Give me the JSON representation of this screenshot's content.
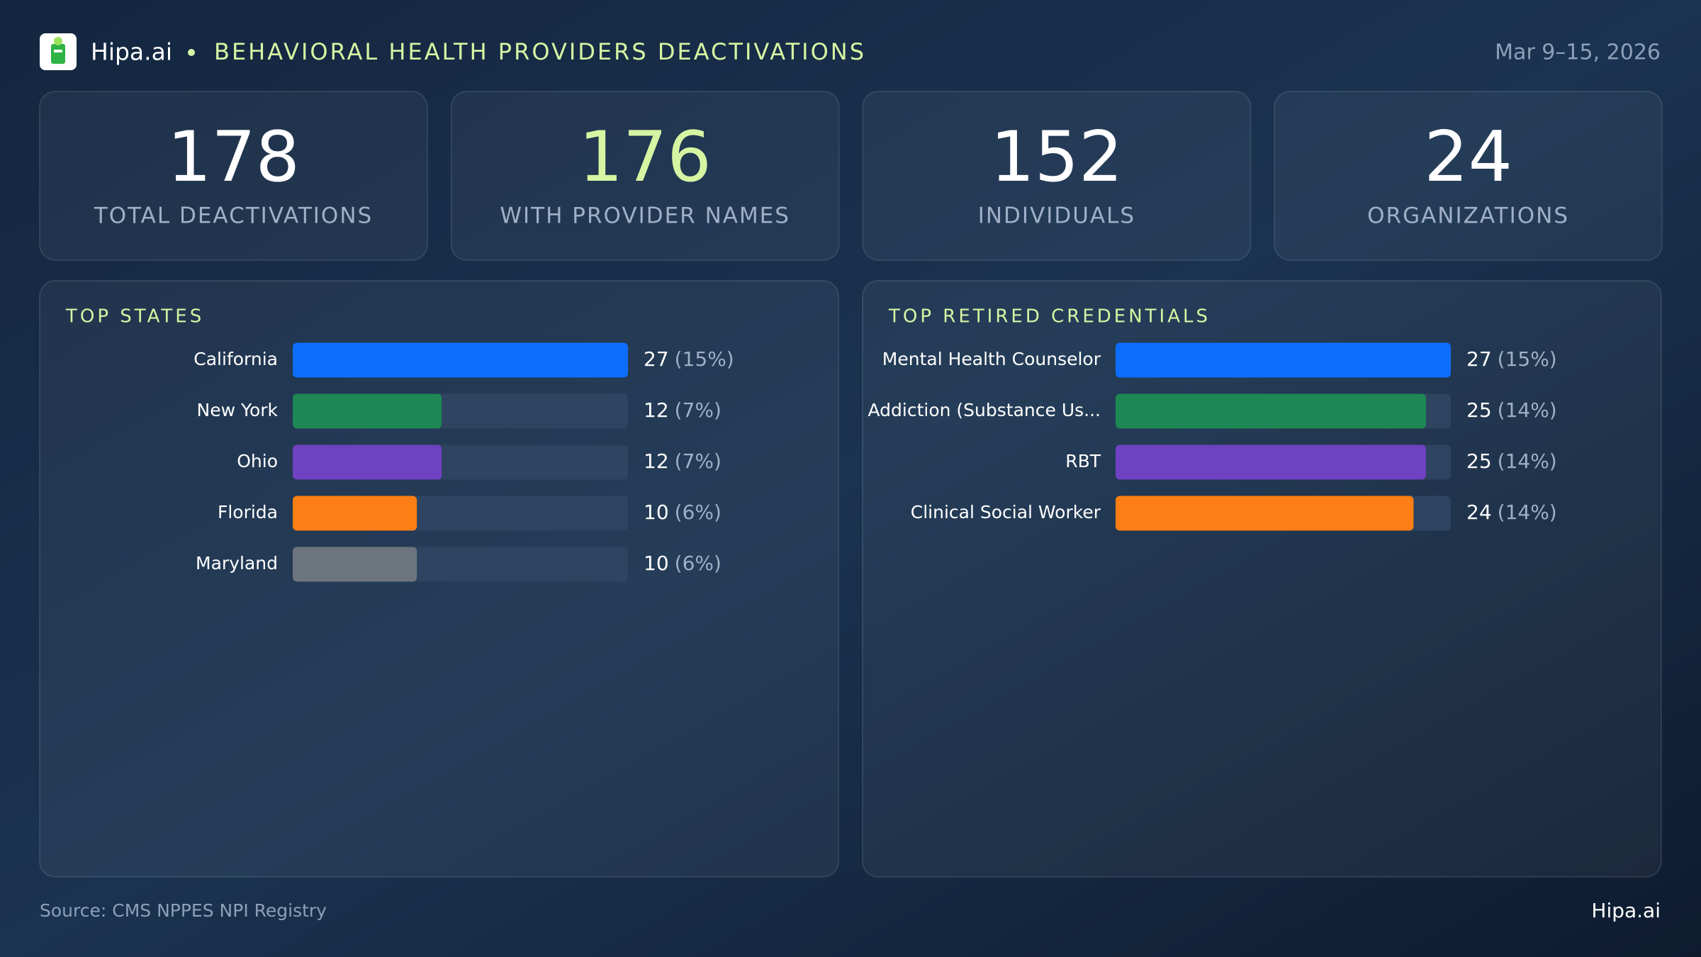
{
  "header": {
    "brand": "Hipa.ai",
    "title": "BEHAVIORAL HEALTH PROVIDERS DEACTIVATIONS",
    "date": "Mar 9–15, 2026"
  },
  "kpis": [
    {
      "value": "178",
      "label": "TOTAL DEACTIVATIONS",
      "color": "#ffffff"
    },
    {
      "value": "176",
      "label": "WITH PROVIDER NAMES",
      "color": "#d6f5a3"
    },
    {
      "value": "152",
      "label": "INDIVIDUALS",
      "color": "#ffffff"
    },
    {
      "value": "24",
      "label": "ORGANIZATIONS",
      "color": "#ffffff"
    }
  ],
  "chart_data": [
    {
      "type": "bar",
      "orientation": "horizontal",
      "title": "TOP STATES",
      "categories": [
        "California",
        "New York",
        "Ohio",
        "Florida",
        "Maryland"
      ],
      "values": [
        27,
        12,
        12,
        10,
        10
      ],
      "share_labels": [
        "(15%)",
        "(7%)",
        "(7%)",
        "(6%)",
        "(6%)"
      ],
      "colors": [
        "#0d6efd",
        "#1e8753",
        "#6f42c1",
        "#fd7e14",
        "#6c757d"
      ]
    },
    {
      "type": "bar",
      "orientation": "horizontal",
      "title": "TOP RETIRED CREDENTIALS",
      "categories": [
        "Mental Health Counselor",
        "Addiction (Substance Us...",
        "RBT",
        "Clinical Social Worker"
      ],
      "values": [
        27,
        25,
        25,
        24
      ],
      "share_labels": [
        "(15%)",
        "(14%)",
        "(14%)",
        "(14%)"
      ],
      "colors": [
        "#0d6efd",
        "#1e8753",
        "#6f42c1",
        "#fd7e14"
      ]
    }
  ],
  "footer": {
    "source": "Source: CMS NPPES NPI Registry",
    "brand": "Hipa.ai"
  }
}
